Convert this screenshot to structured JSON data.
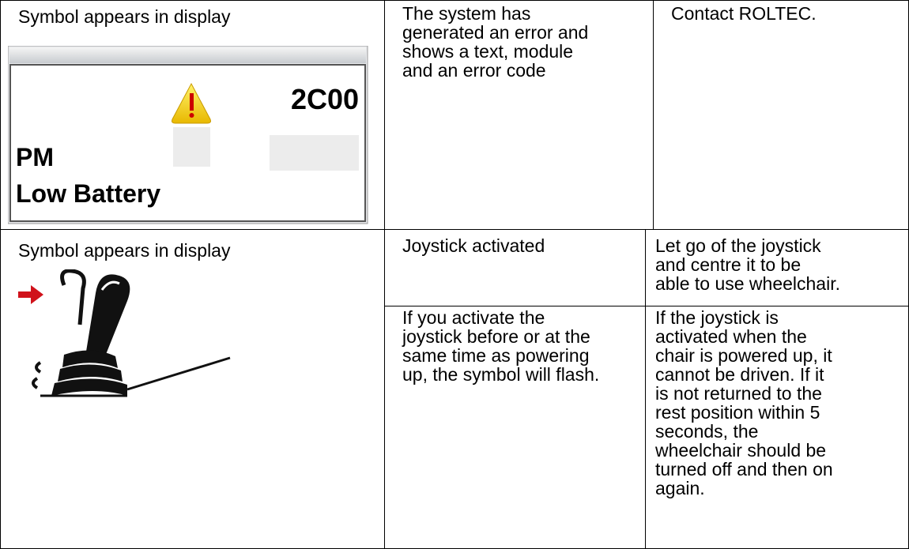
{
  "table": {
    "rows": [
      {
        "symbol": {
          "text": "Symbol appears in display",
          "display": {
            "code": "2C00",
            "module": "PM",
            "message": "Low Battery"
          }
        },
        "cause": {
          "lines": [
            "The system has",
            "generated an error and",
            "shows a text, module",
            "and an error code"
          ]
        },
        "action": {
          "lines": [
            "Contact ROLTEC."
          ]
        }
      },
      {
        "symbol": {
          "text": "Symbol appears in display"
        },
        "sub": [
          {
            "cause": {
              "lines": [
                "Joystick activated"
              ]
            },
            "action": {
              "lines": [
                "Let go of the joystick",
                "and centre it to be",
                "able to use wheelchair."
              ]
            }
          },
          {
            "cause": {
              "lines": [
                "If you activate the",
                "joystick before or at the",
                "same time as powering",
                "up, the symbol will flash."
              ]
            },
            "action": {
              "lines": [
                "If the joystick is",
                "activated when the",
                "chair is powered up, it",
                "cannot be driven. If it",
                "is not returned to the",
                "rest position within 5",
                "seconds, the",
                "wheelchair should be",
                "turned off and then on",
                "again."
              ]
            }
          }
        ]
      }
    ]
  }
}
